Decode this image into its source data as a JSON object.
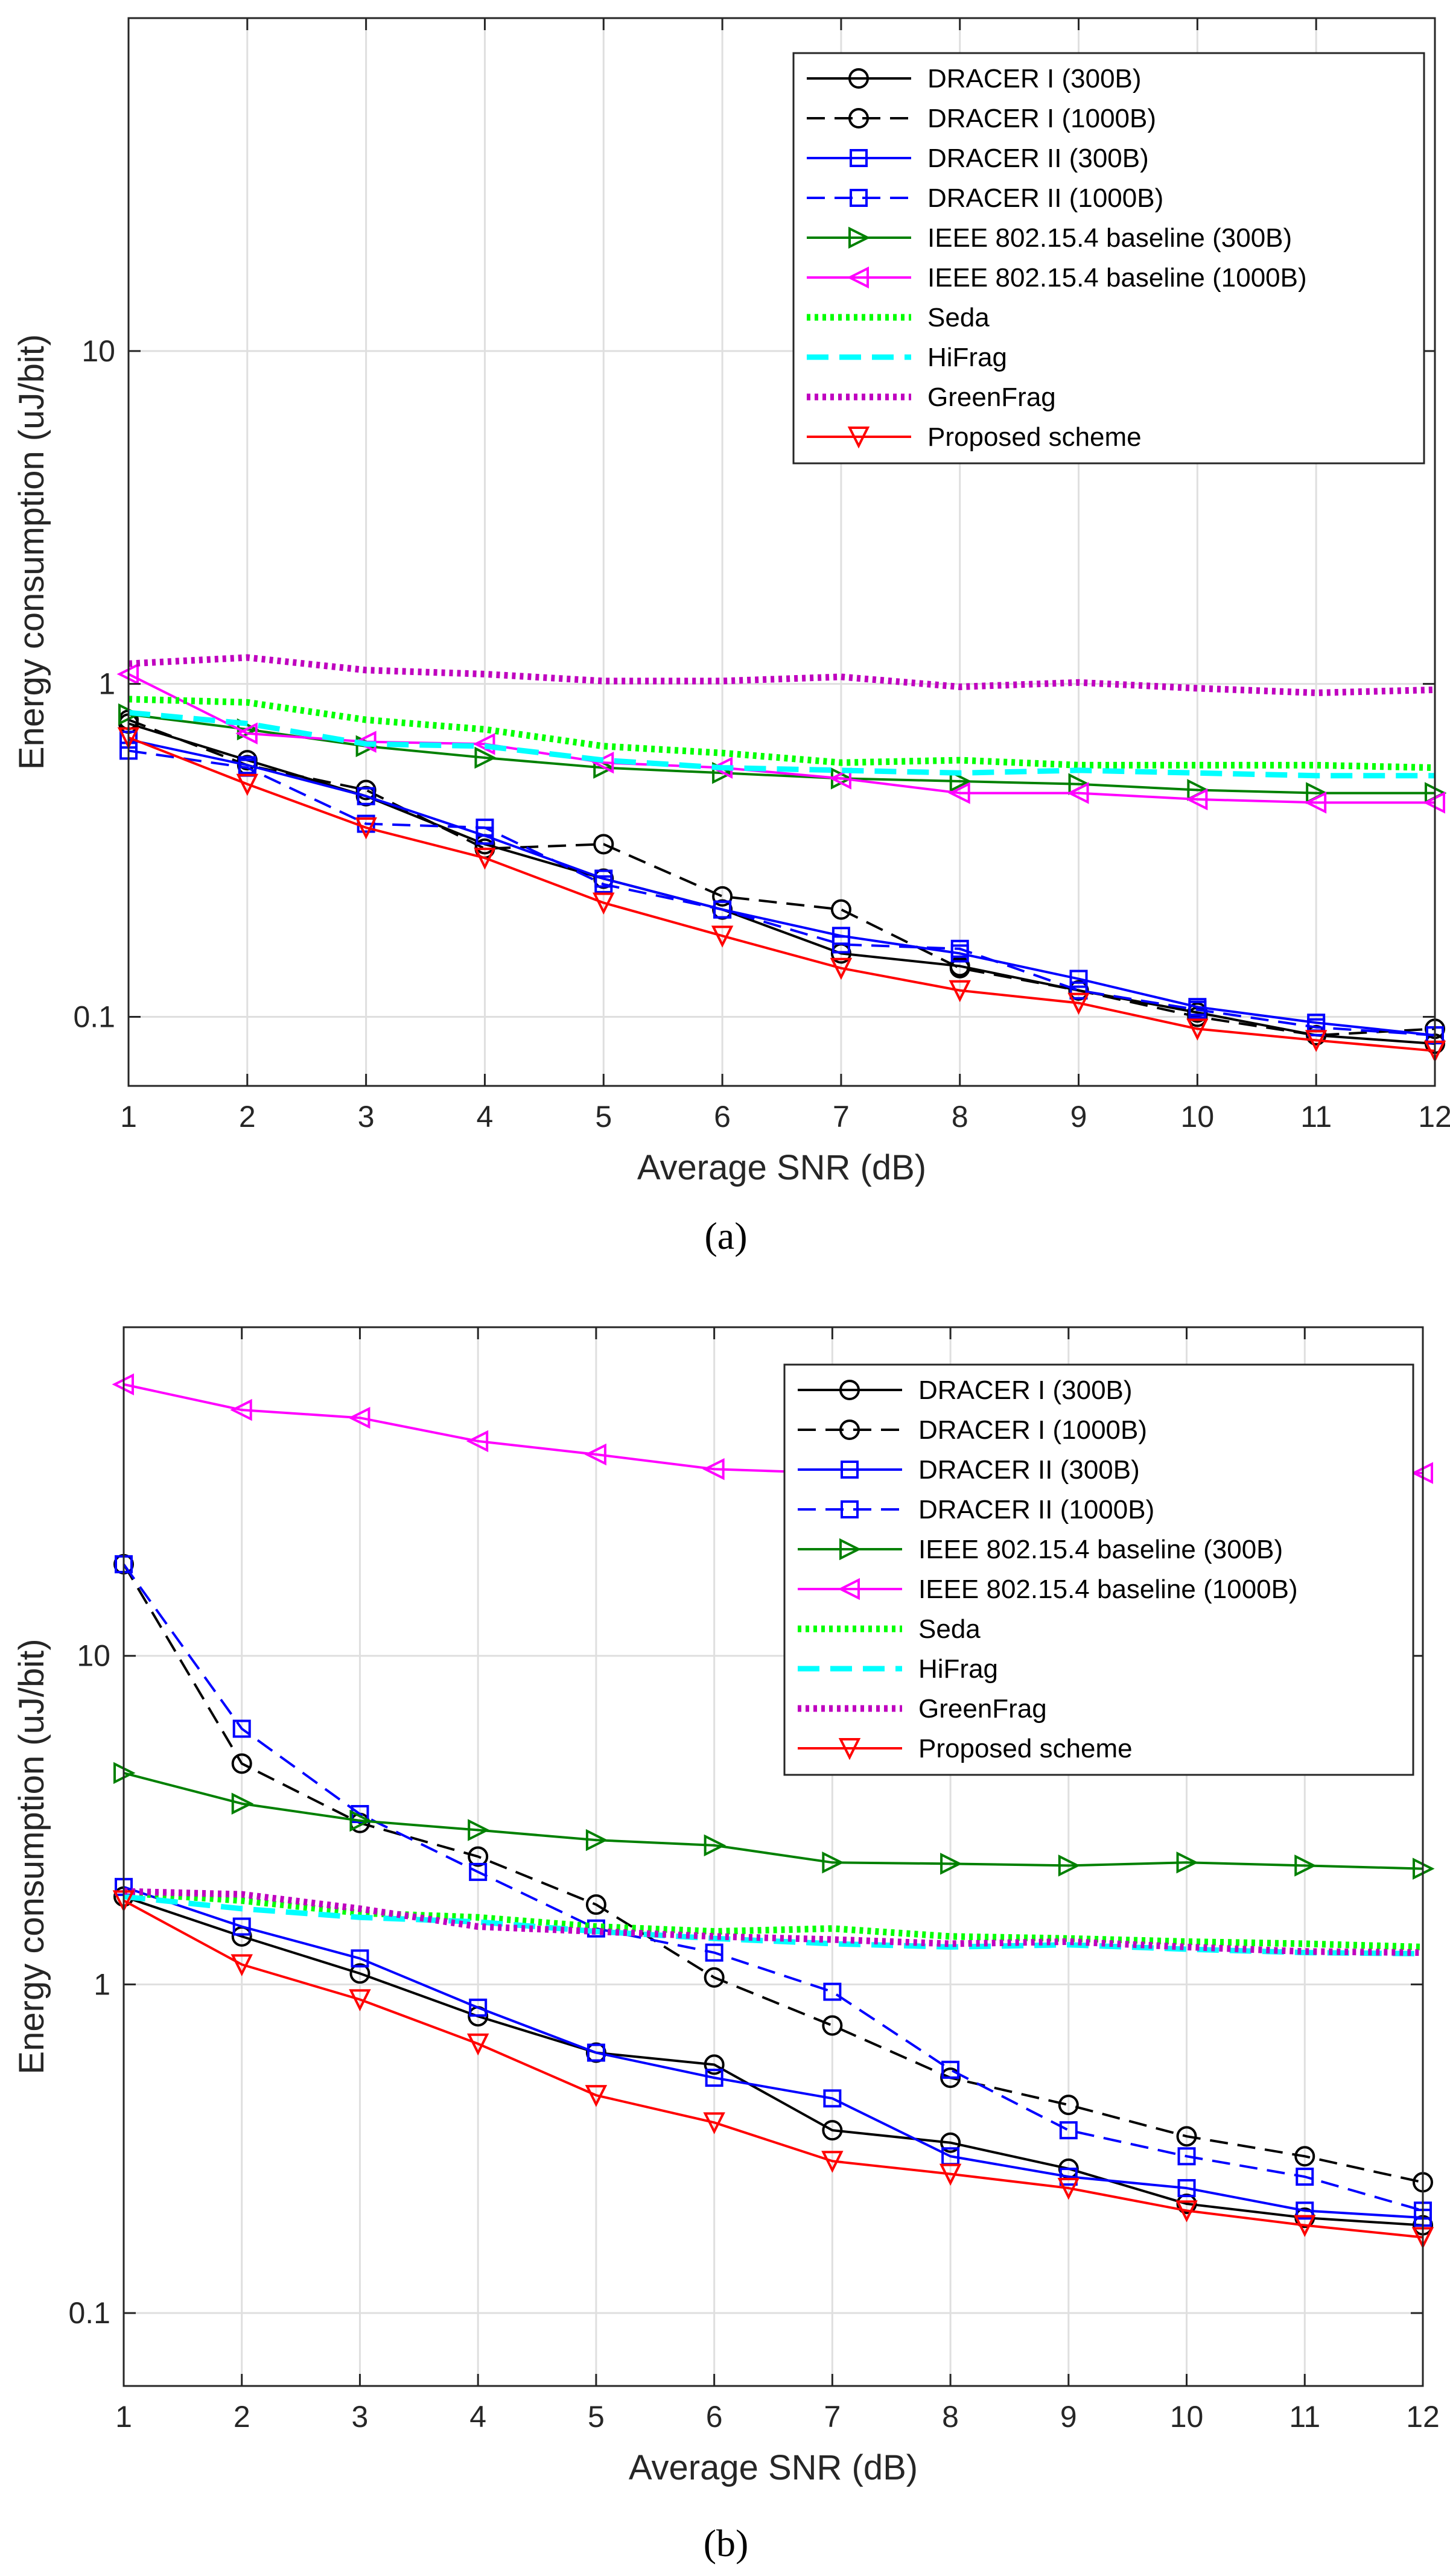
{
  "figure": {
    "captions": [
      "(a)",
      "(b)"
    ],
    "colors": {
      "DRACER I (300B)": "#000000",
      "DRACER I (1000B)": "#000000",
      "DRACER II (300B)": "#0000ff",
      "DRACER II (1000B)": "#0000ff",
      "IEEE 802.15.4 baseline (300B)": "#008000",
      "IEEE 802.15.4 baseline (1000B)": "#ff00ff",
      "Seda": "#00ff00",
      "HiFrag": "#00ffff",
      "GreenFrag": "#bf00bf",
      "Proposed scheme": "#ff0000"
    }
  },
  "chart_data": [
    {
      "type": "line",
      "panel": "(a)",
      "xlabel": "Average SNR (dB)",
      "ylabel": "Energy consumption (uJ/bit)",
      "yscale": "log",
      "xlim": [
        1,
        12
      ],
      "ylim": [
        0.062,
        100
      ],
      "x": [
        1,
        2,
        3,
        4,
        5,
        6,
        7,
        8,
        9,
        10,
        11,
        12
      ],
      "xticks": [
        "1",
        "2",
        "3",
        "4",
        "5",
        "6",
        "7",
        "8",
        "9",
        "10",
        "11",
        "12"
      ],
      "yticks": [
        0.1,
        1,
        10
      ],
      "ytick_labels": [
        "0.1",
        "1",
        "10"
      ],
      "grid": true,
      "legend_position": "top-right",
      "series": [
        {
          "name": "DRACER I (300B)",
          "values": [
            0.76,
            0.59,
            0.46,
            0.33,
            0.26,
            0.21,
            0.155,
            0.142,
            0.12,
            0.103,
            0.088,
            0.083
          ],
          "dash": "solid",
          "marker": "circle"
        },
        {
          "name": "DRACER I (1000B)",
          "values": [
            0.78,
            0.57,
            0.48,
            0.32,
            0.33,
            0.23,
            0.21,
            0.14,
            0.12,
            0.1,
            0.088,
            0.092
          ],
          "dash": "dashed",
          "marker": "circle"
        },
        {
          "name": "DRACER II (300B)",
          "values": [
            0.68,
            0.57,
            0.46,
            0.35,
            0.26,
            0.21,
            0.175,
            0.155,
            0.13,
            0.107,
            0.096,
            0.088
          ],
          "dash": "solid",
          "marker": "square"
        },
        {
          "name": "DRACER II (1000B)",
          "values": [
            0.63,
            0.56,
            0.38,
            0.37,
            0.25,
            0.21,
            0.165,
            0.16,
            0.12,
            0.105,
            0.093,
            0.088
          ],
          "dash": "dashed",
          "marker": "square"
        },
        {
          "name": "IEEE 802.15.4 baseline (300B)",
          "values": [
            0.81,
            0.73,
            0.65,
            0.6,
            0.56,
            0.54,
            0.52,
            0.51,
            0.5,
            0.48,
            0.47,
            0.47
          ],
          "dash": "solid",
          "marker": "triangle-right"
        },
        {
          "name": "IEEE 802.15.4 baseline (1000B)",
          "values": [
            1.07,
            0.71,
            0.67,
            0.66,
            0.58,
            0.56,
            0.52,
            0.47,
            0.47,
            0.45,
            0.44,
            0.44
          ],
          "dash": "solid",
          "marker": "triangle-left"
        },
        {
          "name": "Seda",
          "values": [
            0.9,
            0.88,
            0.78,
            0.73,
            0.65,
            0.62,
            0.58,
            0.59,
            0.57,
            0.57,
            0.57,
            0.56
          ],
          "dash": "dotted",
          "marker": "none"
        },
        {
          "name": "HiFrag",
          "values": [
            0.82,
            0.76,
            0.66,
            0.65,
            0.59,
            0.56,
            0.55,
            0.54,
            0.55,
            0.54,
            0.53,
            0.53
          ],
          "dash": "long-dash",
          "marker": "none"
        },
        {
          "name": "GreenFrag",
          "values": [
            1.15,
            1.2,
            1.1,
            1.07,
            1.02,
            1.02,
            1.05,
            0.98,
            1.01,
            0.97,
            0.94,
            0.96
          ],
          "dash": "dotted",
          "marker": "none"
        },
        {
          "name": "Proposed scheme",
          "values": [
            0.69,
            0.5,
            0.37,
            0.3,
            0.22,
            0.175,
            0.14,
            0.12,
            0.11,
            0.092,
            0.085,
            0.079
          ],
          "dash": "solid",
          "marker": "triangle-down"
        }
      ]
    },
    {
      "type": "line",
      "panel": "(b)",
      "xlabel": "Average SNR (dB)",
      "ylabel": "Energy consumption (uJ/bit)",
      "yscale": "log",
      "xlim": [
        1,
        12
      ],
      "ylim": [
        0.06,
        100
      ],
      "x": [
        1,
        2,
        3,
        4,
        5,
        6,
        7,
        8,
        9,
        10,
        11,
        12
      ],
      "xticks": [
        "1",
        "2",
        "3",
        "4",
        "5",
        "6",
        "7",
        "8",
        "9",
        "10",
        "11",
        "12"
      ],
      "yticks": [
        0.1,
        1,
        10
      ],
      "ytick_labels": [
        "0.1",
        "1",
        "10"
      ],
      "grid": true,
      "legend_position": "top-right",
      "series": [
        {
          "name": "DRACER I (300B)",
          "values": [
            1.85,
            1.4,
            1.08,
            0.8,
            0.62,
            0.57,
            0.36,
            0.33,
            0.275,
            0.215,
            0.195,
            0.185
          ],
          "dash": "solid",
          "marker": "circle"
        },
        {
          "name": "DRACER I (1000B)",
          "values": [
            19.0,
            4.7,
            3.1,
            2.45,
            1.75,
            1.05,
            0.75,
            0.52,
            0.43,
            0.345,
            0.3,
            0.25
          ],
          "dash": "dashed",
          "marker": "circle"
        },
        {
          "name": "DRACER II (300B)",
          "values": [
            1.98,
            1.5,
            1.2,
            0.85,
            0.62,
            0.52,
            0.45,
            0.3,
            0.26,
            0.24,
            0.205,
            0.195
          ],
          "dash": "solid",
          "marker": "square"
        },
        {
          "name": "DRACER II (1000B)",
          "values": [
            19.0,
            6.0,
            3.3,
            2.2,
            1.48,
            1.25,
            0.95,
            0.55,
            0.36,
            0.3,
            0.26,
            0.205
          ],
          "dash": "dashed",
          "marker": "square"
        },
        {
          "name": "IEEE 802.15.4 baseline (300B)",
          "values": [
            4.4,
            3.55,
            3.15,
            2.95,
            2.75,
            2.65,
            2.35,
            2.33,
            2.3,
            2.35,
            2.3,
            2.25
          ],
          "dash": "solid",
          "marker": "triangle-right"
        },
        {
          "name": "IEEE 802.15.4 baseline (1000B)",
          "values": [
            67,
            56,
            53,
            45,
            41,
            37,
            36,
            35,
            36,
            36,
            36,
            36
          ],
          "dash": "solid",
          "marker": "triangle-left"
        },
        {
          "name": "Seda",
          "values": [
            1.9,
            1.8,
            1.65,
            1.6,
            1.5,
            1.45,
            1.48,
            1.4,
            1.38,
            1.35,
            1.33,
            1.3
          ],
          "dash": "dotted",
          "marker": "none"
        },
        {
          "name": "HiFrag",
          "values": [
            1.85,
            1.7,
            1.6,
            1.55,
            1.45,
            1.38,
            1.33,
            1.3,
            1.32,
            1.28,
            1.25,
            1.24
          ],
          "dash": "long-dash",
          "marker": "none"
        },
        {
          "name": "GreenFrag",
          "values": [
            1.92,
            1.88,
            1.7,
            1.5,
            1.45,
            1.4,
            1.37,
            1.33,
            1.35,
            1.3,
            1.26,
            1.25
          ],
          "dash": "dotted",
          "marker": "none"
        },
        {
          "name": "Proposed scheme",
          "values": [
            1.8,
            1.15,
            0.9,
            0.66,
            0.46,
            0.38,
            0.29,
            0.265,
            0.24,
            0.205,
            0.185,
            0.17
          ],
          "dash": "solid",
          "marker": "triangle-down"
        }
      ]
    }
  ]
}
